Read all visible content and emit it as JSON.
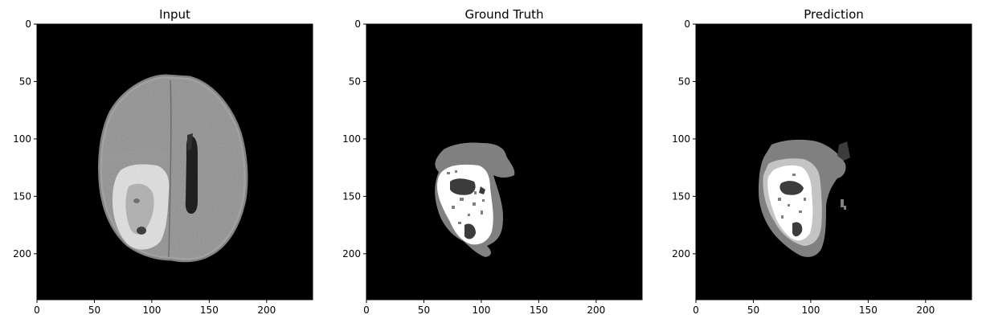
{
  "figure": {
    "panels": [
      {
        "title": "Input",
        "kind": "mri-slice"
      },
      {
        "title": "Ground Truth",
        "kind": "segmentation-mask"
      },
      {
        "title": "Prediction",
        "kind": "segmentation-mask"
      }
    ],
    "x_ticks": [
      "0",
      "50",
      "100",
      "150",
      "200"
    ],
    "y_ticks": [
      "0",
      "50",
      "100",
      "150",
      "200"
    ],
    "colors": {
      "background": "#000000",
      "edema": "#808080",
      "core": "#ffffff",
      "necrosis": "#3c3c3c",
      "enhancing": "#c4c4c4"
    }
  }
}
